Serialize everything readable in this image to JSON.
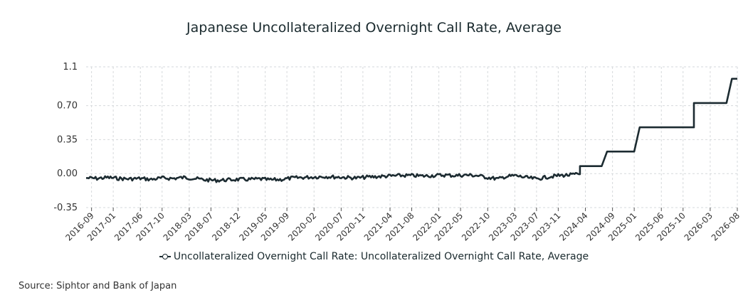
{
  "chart_data": {
    "type": "line",
    "title": "Japanese Uncollateralized Overnight Call Rate, Average",
    "xlabel": "",
    "ylabel": "",
    "ylim": [
      -0.35,
      1.1
    ],
    "y_ticks": [
      "-0.35",
      "0.00",
      "0.35",
      "0.70",
      "1.1"
    ],
    "x_range": [
      "2016-08",
      "2026-08"
    ],
    "x_ticks": [
      "2016-09",
      "2017-01",
      "2017-06",
      "2017-10",
      "2018-03",
      "2018-07",
      "2018-12",
      "2019-05",
      "2019-09",
      "2020-02",
      "2020-07",
      "2020-11",
      "2021-04",
      "2021-08",
      "2022-01",
      "2022-05",
      "2022-10",
      "2023-03",
      "2023-07",
      "2023-11",
      "2024-04",
      "2024-09",
      "2025-01",
      "2025-06",
      "2025-10",
      "2026-03",
      "2026-08"
    ],
    "grid": true,
    "legend_placement": "bottom-center",
    "line_color": "#1c2b31",
    "series": [
      {
        "name": "Uncollateralized Overnight Call Rate: Uncollateralized Overnight Call Rate, Average",
        "points": [
          [
            "2016-08",
            -0.045
          ],
          [
            "2016-10",
            -0.05
          ],
          [
            "2016-12",
            -0.04
          ],
          [
            "2017-02",
            -0.05
          ],
          [
            "2017-04",
            -0.055
          ],
          [
            "2017-06",
            -0.05
          ],
          [
            "2017-08",
            -0.06
          ],
          [
            "2017-10",
            -0.045
          ],
          [
            "2017-12",
            -0.05
          ],
          [
            "2018-02",
            -0.04
          ],
          [
            "2018-04",
            -0.05
          ],
          [
            "2018-06",
            -0.065
          ],
          [
            "2018-08",
            -0.07
          ],
          [
            "2018-10",
            -0.065
          ],
          [
            "2018-12",
            -0.06
          ],
          [
            "2019-02",
            -0.06
          ],
          [
            "2019-04",
            -0.055
          ],
          [
            "2019-06",
            -0.065
          ],
          [
            "2019-08",
            -0.06
          ],
          [
            "2019-10",
            -0.045
          ],
          [
            "2019-12",
            -0.04
          ],
          [
            "2020-02",
            -0.035
          ],
          [
            "2020-04",
            -0.03
          ],
          [
            "2020-06",
            -0.035
          ],
          [
            "2020-08",
            -0.04
          ],
          [
            "2020-10",
            -0.045
          ],
          [
            "2020-12",
            -0.035
          ],
          [
            "2021-02",
            -0.03
          ],
          [
            "2021-04",
            -0.025
          ],
          [
            "2021-06",
            -0.02
          ],
          [
            "2021-08",
            -0.02
          ],
          [
            "2021-10",
            -0.025
          ],
          [
            "2021-12",
            -0.02
          ],
          [
            "2022-02",
            -0.015
          ],
          [
            "2022-04",
            -0.02
          ],
          [
            "2022-06",
            -0.015
          ],
          [
            "2022-08",
            -0.02
          ],
          [
            "2022-10",
            -0.04
          ],
          [
            "2022-12",
            -0.055
          ],
          [
            "2023-01",
            -0.035
          ],
          [
            "2023-03",
            -0.02
          ],
          [
            "2023-05",
            -0.04
          ],
          [
            "2023-07",
            -0.055
          ],
          [
            "2023-09",
            -0.035
          ],
          [
            "2023-11",
            -0.02
          ],
          [
            "2024-01",
            -0.015
          ],
          [
            "2024-03",
            -0.005
          ],
          [
            "2024-03",
            0.077
          ],
          [
            "2024-07",
            0.077
          ],
          [
            "2024-08",
            0.227
          ],
          [
            "2025-01",
            0.227
          ],
          [
            "2025-02",
            0.477
          ],
          [
            "2025-12",
            0.477
          ],
          [
            "2025-12",
            0.727
          ],
          [
            "2026-06",
            0.727
          ],
          [
            "2026-07",
            0.977
          ],
          [
            "2026-08",
            0.977
          ]
        ]
      }
    ]
  },
  "source": "Source: Siphtor and Bank of Japan"
}
